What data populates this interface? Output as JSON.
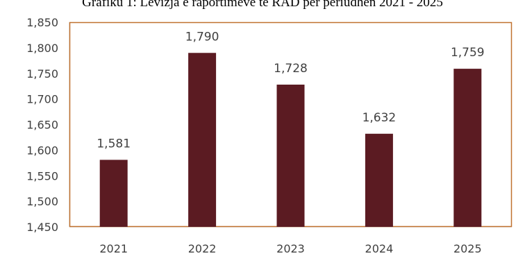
{
  "chart_data": {
    "type": "bar",
    "title": "Grafiku 1: Lëvizja e raportimeve të RAD për periudhën 2021 - 2025",
    "categories": [
      "2021",
      "2022",
      "2023",
      "2024",
      "2025"
    ],
    "values": [
      1581,
      1790,
      1728,
      1632,
      1759
    ],
    "data_labels": [
      "1,581",
      "1,790",
      "1,728",
      "1,632",
      "1,759"
    ],
    "ylim": [
      1450,
      1850
    ],
    "yticks": [
      1450,
      1500,
      1550,
      1600,
      1650,
      1700,
      1750,
      1800,
      1850
    ],
    "ytick_labels": [
      "1,450",
      "1,500",
      "1,550",
      "1,600",
      "1,650",
      "1,700",
      "1,750",
      "1,800",
      "1,850"
    ],
    "xlabel": "",
    "ylabel": "",
    "grid": false,
    "legend": "none",
    "bar_color": "#5b1b22",
    "frame_color": "#c0712e"
  }
}
